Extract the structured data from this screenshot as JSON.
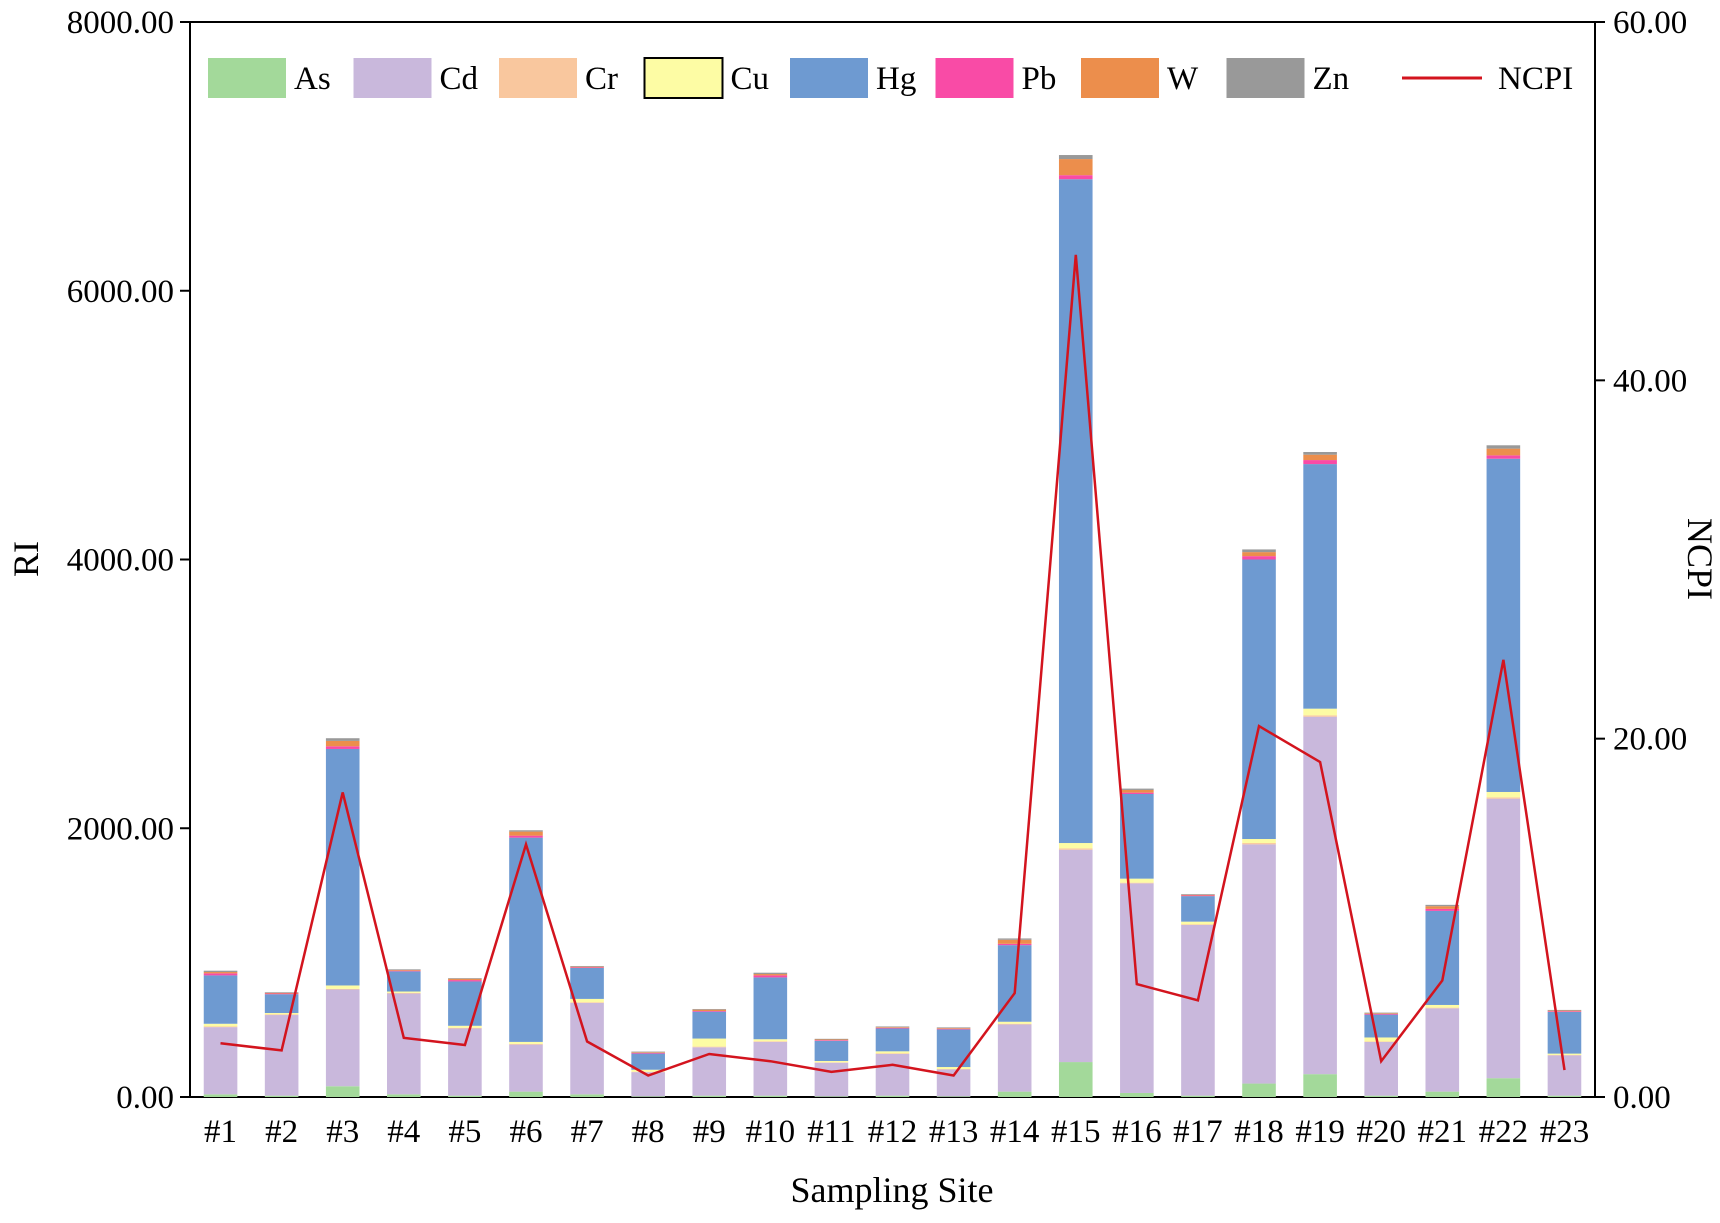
{
  "chart_data": {
    "type": "bar",
    "stacked": true,
    "xlabel": "Sampling Site",
    "ylabel": "RI",
    "y2label": "NCPI",
    "ylim": [
      0,
      8000
    ],
    "y2lim": [
      0,
      60
    ],
    "yticks": [
      "0.00",
      "2000.00",
      "4000.00",
      "6000.00",
      "8000.00"
    ],
    "y2ticks": [
      "0.00",
      "20.00",
      "40.00",
      "60.00"
    ],
    "grid": false,
    "legend_position": "top",
    "categories": [
      "#1",
      "#2",
      "#3",
      "#4",
      "#5",
      "#6",
      "#7",
      "#8",
      "#9",
      "#10",
      "#11",
      "#12",
      "#13",
      "#14",
      "#15",
      "#16",
      "#17",
      "#18",
      "#19",
      "#20",
      "#21",
      "#22",
      "#23"
    ],
    "series": [
      {
        "name": "As",
        "color": "#a3d99a",
        "values": [
          20,
          10,
          80,
          20,
          10,
          40,
          20,
          5,
          10,
          10,
          5,
          10,
          5,
          40,
          260,
          30,
          10,
          100,
          170,
          10,
          40,
          140,
          10
        ]
      },
      {
        "name": "Cd",
        "color": "#c9b8dc",
        "values": [
          500,
          600,
          720,
          750,
          500,
          350,
          680,
          180,
          360,
          400,
          250,
          310,
          200,
          500,
          1580,
          1560,
          1270,
          1780,
          2660,
          400,
          620,
          2080,
          300
        ]
      },
      {
        "name": "Cr",
        "color": "#f9c79e",
        "values": [
          5,
          5,
          5,
          5,
          5,
          5,
          5,
          3,
          5,
          5,
          3,
          5,
          3,
          5,
          10,
          5,
          5,
          10,
          10,
          3,
          5,
          10,
          3
        ]
      },
      {
        "name": "Cu",
        "color": "#fdfca4",
        "values": [
          20,
          10,
          25,
          10,
          15,
          15,
          25,
          15,
          60,
          15,
          10,
          15,
          15,
          15,
          40,
          30,
          20,
          30,
          50,
          30,
          20,
          40,
          10
        ]
      },
      {
        "name": "Hg",
        "color": "#6e9ad1",
        "values": [
          360,
          140,
          1760,
          150,
          330,
          1520,
          230,
          120,
          200,
          460,
          150,
          170,
          280,
          570,
          4940,
          630,
          190,
          2080,
          1820,
          170,
          700,
          2480,
          310
        ]
      },
      {
        "name": "Pb",
        "color": "#f94ba6",
        "values": [
          15,
          5,
          20,
          5,
          10,
          15,
          5,
          5,
          5,
          15,
          5,
          5,
          5,
          10,
          30,
          10,
          5,
          25,
          30,
          5,
          15,
          25,
          5
        ]
      },
      {
        "name": "W",
        "color": "#ec8e4c",
        "values": [
          10,
          5,
          40,
          5,
          10,
          30,
          5,
          5,
          10,
          10,
          5,
          5,
          5,
          30,
          120,
          20,
          5,
          30,
          40,
          5,
          20,
          50,
          5
        ]
      },
      {
        "name": "Zn",
        "color": "#999999",
        "values": [
          10,
          5,
          20,
          5,
          5,
          10,
          5,
          5,
          5,
          10,
          5,
          5,
          5,
          10,
          30,
          10,
          5,
          20,
          20,
          5,
          10,
          25,
          5
        ]
      }
    ],
    "line_series": {
      "name": "NCPI",
      "color": "#d3141e",
      "axis": "right",
      "values": [
        3.0,
        2.6,
        17.0,
        3.3,
        2.9,
        14.1,
        3.1,
        1.2,
        2.4,
        2.0,
        1.4,
        1.8,
        1.2,
        5.8,
        47.0,
        6.3,
        5.4,
        20.7,
        18.7,
        2.0,
        6.5,
        24.4,
        1.5
      ]
    }
  }
}
